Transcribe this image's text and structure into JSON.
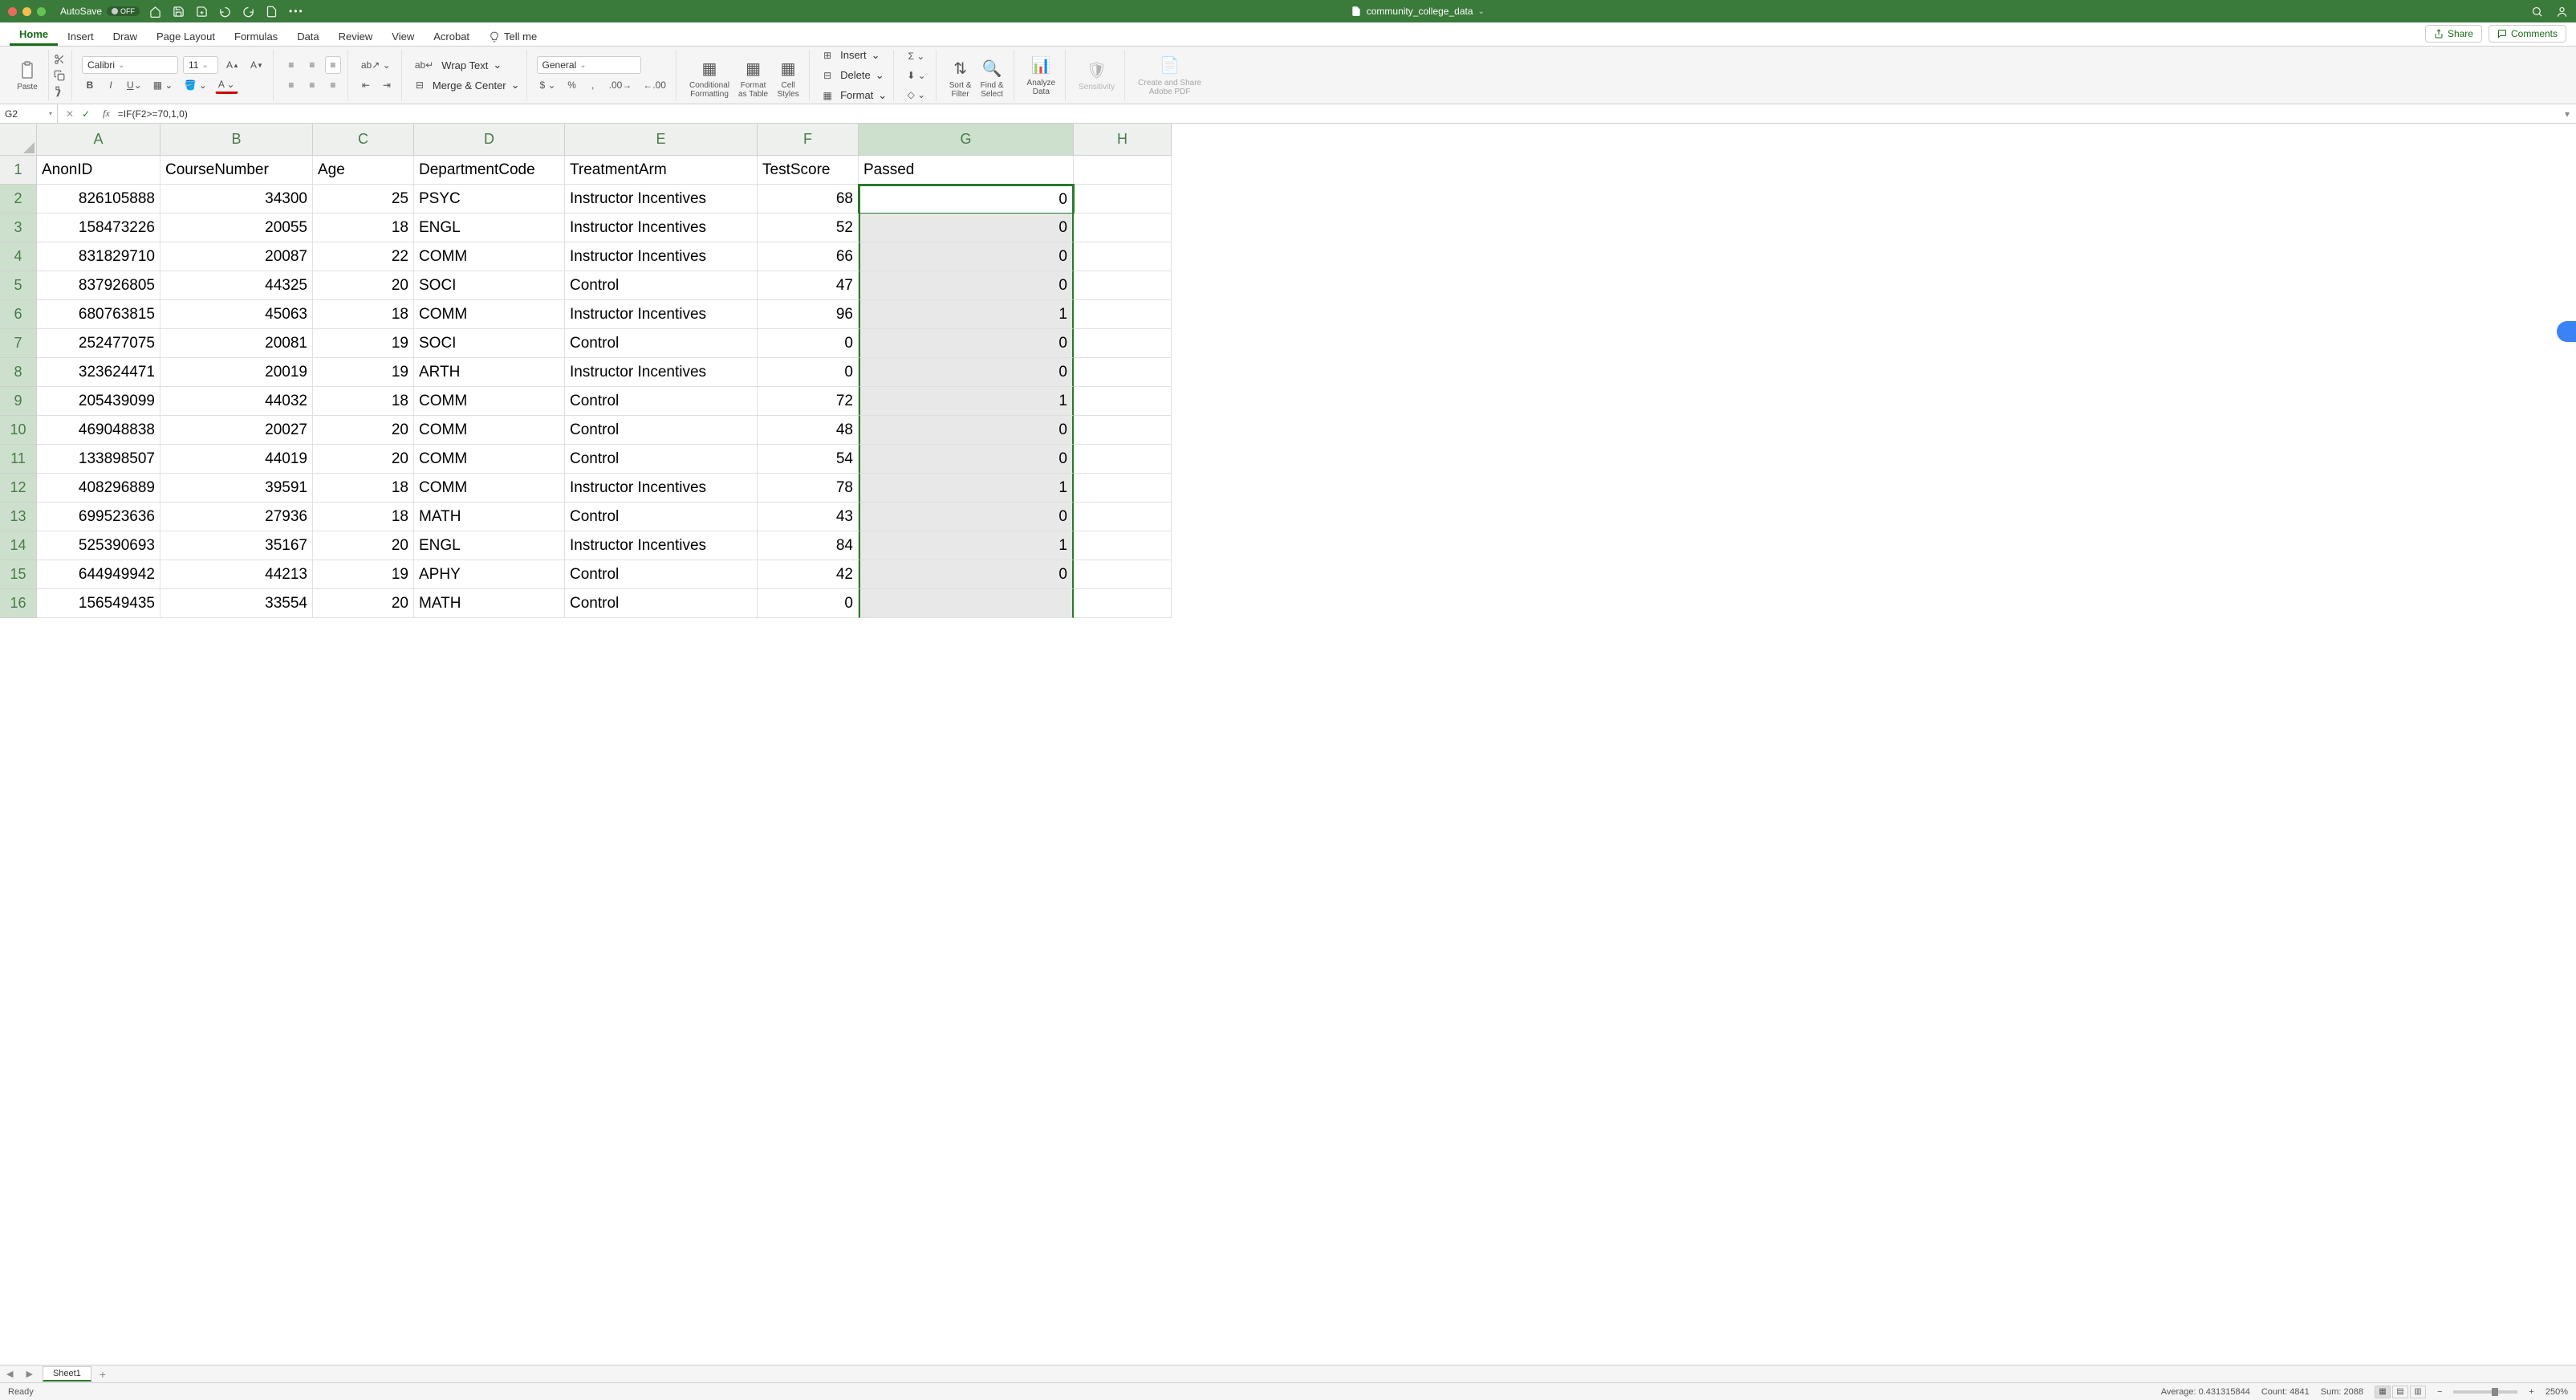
{
  "app": {
    "autosave_label": "AutoSave",
    "autosave_state": "OFF",
    "filename": "community_college_data",
    "traffic_colors": [
      "#ec6a5e",
      "#f4bf4f",
      "#61c554"
    ]
  },
  "tabs": {
    "items": [
      "Home",
      "Insert",
      "Draw",
      "Page Layout",
      "Formulas",
      "Data",
      "Review",
      "View",
      "Acrobat"
    ],
    "tell_me": "Tell me",
    "active": "Home",
    "share": "Share",
    "comments": "Comments"
  },
  "ribbon": {
    "paste": "Paste",
    "font_name": "Calibri",
    "font_size": "11",
    "wrap": "Wrap Text",
    "merge": "Merge & Center",
    "number_format": "General",
    "cond_fmt": "Conditional\nFormatting",
    "fmt_table": "Format\nas Table",
    "cell_styles": "Cell\nStyles",
    "insert": "Insert",
    "delete": "Delete",
    "format": "Format",
    "sort_filter": "Sort &\nFilter",
    "find_select": "Find &\nSelect",
    "analyze": "Analyze\nData",
    "sensitivity": "Sensitivity",
    "adobe": "Create and Share\nAdobe PDF"
  },
  "formula_bar": {
    "name": "G2",
    "formula": "=IF(F2>=70,1,0)"
  },
  "columns": [
    "A",
    "B",
    "C",
    "D",
    "E",
    "F",
    "G",
    "H"
  ],
  "headers": [
    "AnonID",
    "CourseNumber",
    "Age",
    "DepartmentCode",
    "TreatmentArm",
    "TestScore",
    "Passed"
  ],
  "rows": [
    [
      "826105888",
      "34300",
      "25",
      "PSYC",
      "Instructor Incentives",
      "68",
      "0"
    ],
    [
      "158473226",
      "20055",
      "18",
      "ENGL",
      "Instructor Incentives",
      "52",
      "0"
    ],
    [
      "831829710",
      "20087",
      "22",
      "COMM",
      "Instructor Incentives",
      "66",
      "0"
    ],
    [
      "837926805",
      "44325",
      "20",
      "SOCI",
      "Control",
      "47",
      "0"
    ],
    [
      "680763815",
      "45063",
      "18",
      "COMM",
      "Instructor Incentives",
      "96",
      "1"
    ],
    [
      "252477075",
      "20081",
      "19",
      "SOCI",
      "Control",
      "0",
      "0"
    ],
    [
      "323624471",
      "20019",
      "19",
      "ARTH",
      "Instructor Incentives",
      "0",
      "0"
    ],
    [
      "205439099",
      "44032",
      "18",
      "COMM",
      "Control",
      "72",
      "1"
    ],
    [
      "469048838",
      "20027",
      "20",
      "COMM",
      "Control",
      "48",
      "0"
    ],
    [
      "133898507",
      "44019",
      "20",
      "COMM",
      "Control",
      "54",
      "0"
    ],
    [
      "408296889",
      "39591",
      "18",
      "COMM",
      "Instructor Incentives",
      "78",
      "1"
    ],
    [
      "699523636",
      "27936",
      "18",
      "MATH",
      "Control",
      "43",
      "0"
    ],
    [
      "525390693",
      "35167",
      "20",
      "ENGL",
      "Instructor Incentives",
      "84",
      "1"
    ],
    [
      "644949942",
      "44213",
      "19",
      "APHY",
      "Control",
      "42",
      "0"
    ],
    [
      "156549435",
      "33554",
      "20",
      "MATH",
      "Control",
      "0",
      ""
    ]
  ],
  "numeric_cols": [
    0,
    1,
    2,
    5,
    6
  ],
  "sheet": {
    "name": "Sheet1"
  },
  "status": {
    "ready": "Ready",
    "average": "Average: 0.431315844",
    "count": "Count: 4841",
    "sum": "Sum: 2088",
    "zoom": "250%"
  }
}
